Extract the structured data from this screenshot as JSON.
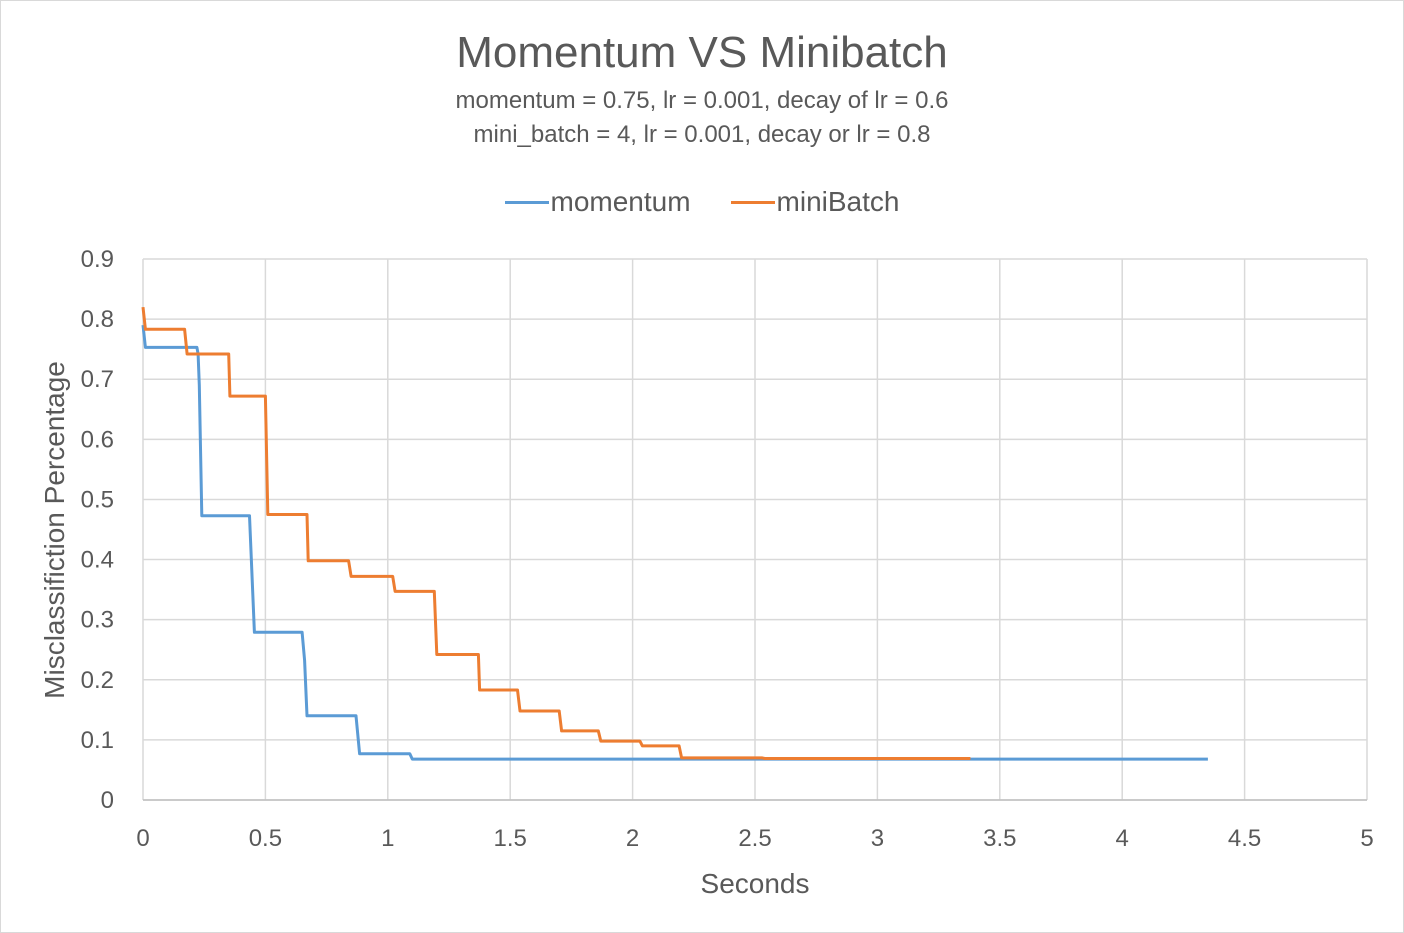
{
  "chart_data": {
    "type": "line",
    "title": "Momentum VS Minibatch",
    "subtitle_lines": [
      "momentum = 0.75, lr = 0.001,  decay of lr = 0.6",
      "mini_batch = 4, lr = 0.001, decay or lr = 0.8"
    ],
    "xlabel": "Seconds",
    "ylabel": "Misclassifiction Percentage",
    "xlim": [
      0,
      5
    ],
    "ylim": [
      0,
      0.9
    ],
    "x_ticks": [
      "0",
      "0.5",
      "1",
      "1.5",
      "2",
      "2.5",
      "3",
      "3.5",
      "4",
      "4.5",
      "5"
    ],
    "y_ticks": [
      "0",
      "0.1",
      "0.2",
      "0.3",
      "0.4",
      "0.5",
      "0.6",
      "0.7",
      "0.8",
      "0.9"
    ],
    "grid": true,
    "legend_position": "top",
    "series": [
      {
        "name": "momentum",
        "color": "#5b9bd5",
        "points": [
          [
            0.0,
            0.79
          ],
          [
            0.01,
            0.753
          ],
          [
            0.22,
            0.753
          ],
          [
            0.225,
            0.742
          ],
          [
            0.23,
            0.69
          ],
          [
            0.24,
            0.473
          ],
          [
            0.435,
            0.473
          ],
          [
            0.455,
            0.279
          ],
          [
            0.65,
            0.279
          ],
          [
            0.66,
            0.232
          ],
          [
            0.67,
            0.14
          ],
          [
            0.87,
            0.14
          ],
          [
            0.885,
            0.077
          ],
          [
            1.09,
            0.077
          ],
          [
            1.1,
            0.068
          ],
          [
            4.35,
            0.068
          ]
        ]
      },
      {
        "name": "miniBatch",
        "color": "#ed7d31",
        "points": [
          [
            0.0,
            0.82
          ],
          [
            0.01,
            0.783
          ],
          [
            0.17,
            0.783
          ],
          [
            0.18,
            0.742
          ],
          [
            0.35,
            0.742
          ],
          [
            0.355,
            0.672
          ],
          [
            0.5,
            0.672
          ],
          [
            0.51,
            0.475
          ],
          [
            0.67,
            0.475
          ],
          [
            0.675,
            0.398
          ],
          [
            0.84,
            0.398
          ],
          [
            0.85,
            0.372
          ],
          [
            1.02,
            0.372
          ],
          [
            1.03,
            0.347
          ],
          [
            1.19,
            0.347
          ],
          [
            1.2,
            0.242
          ],
          [
            1.37,
            0.242
          ],
          [
            1.375,
            0.183
          ],
          [
            1.53,
            0.183
          ],
          [
            1.54,
            0.148
          ],
          [
            1.7,
            0.148
          ],
          [
            1.71,
            0.115
          ],
          [
            1.86,
            0.115
          ],
          [
            1.87,
            0.098
          ],
          [
            2.03,
            0.098
          ],
          [
            2.04,
            0.09
          ],
          [
            2.19,
            0.09
          ],
          [
            2.2,
            0.07
          ],
          [
            2.53,
            0.07
          ],
          [
            2.54,
            0.069
          ],
          [
            3.38,
            0.069
          ]
        ]
      }
    ]
  }
}
